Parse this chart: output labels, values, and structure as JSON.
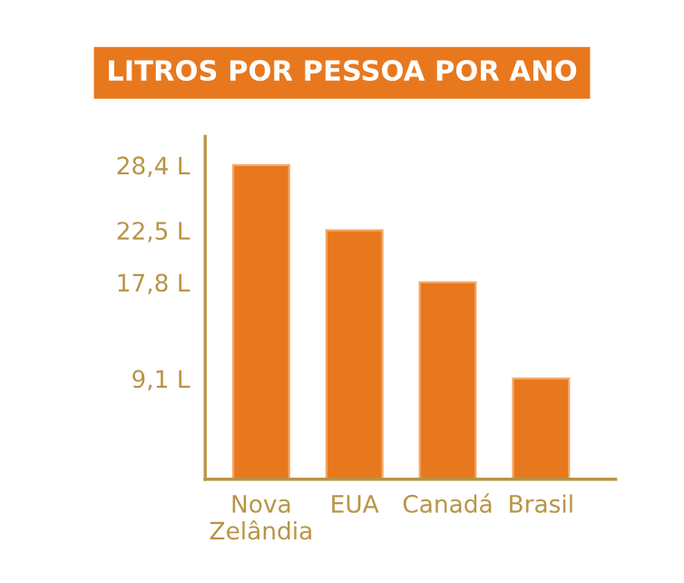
{
  "chart_data": {
    "type": "bar",
    "title": "LITROS POR PESSOA POR ANO",
    "categories": [
      "Nova\nZelândia",
      "EUA",
      "Canadá",
      "Brasil"
    ],
    "values": [
      28.4,
      22.5,
      17.8,
      9.1
    ],
    "color": "#e8781e",
    "ylim": [
      0,
      31
    ],
    "yticks": [
      {
        "value": 9.1,
        "label": "9,1 L"
      },
      {
        "value": 17.8,
        "label": "17,8 L"
      },
      {
        "value": 22.5,
        "label": "22,5 L"
      },
      {
        "value": 28.4,
        "label": "28,4 L"
      }
    ],
    "grid": false,
    "legend": false
  }
}
